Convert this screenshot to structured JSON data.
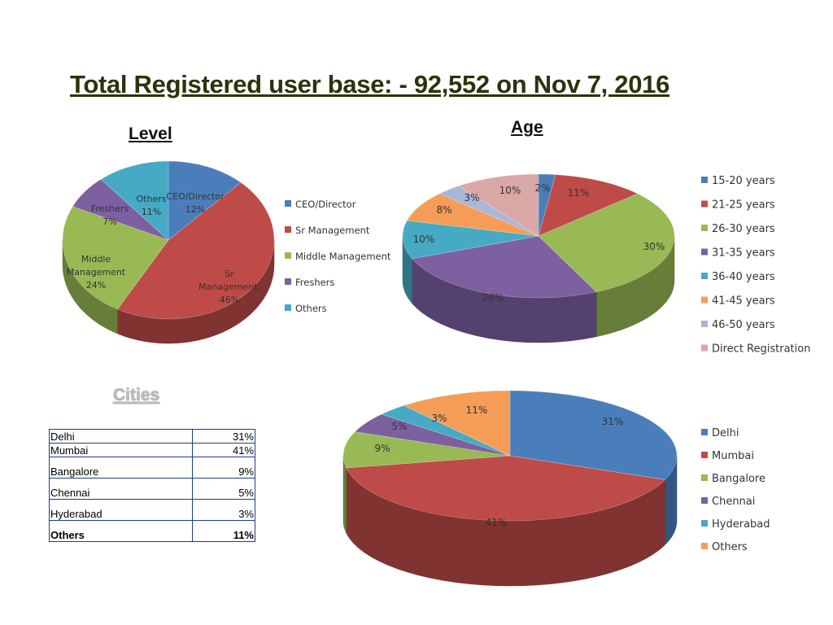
{
  "title": "Total Registered user base: - 92,552 on Nov 7, 2016",
  "headings": {
    "level": "Level",
    "age": "Age",
    "cities": "Cities"
  },
  "chart_data": [
    {
      "id": "level",
      "type": "pie",
      "title": "Level",
      "series": [
        {
          "name": "CEO/Director",
          "value": 12,
          "label": "12%",
          "color": "#4a7ebb"
        },
        {
          "name": "Sr Management",
          "value": 46,
          "label": "46%",
          "color": "#be4b48"
        },
        {
          "name": "Middle Management",
          "value": 24,
          "label": "24%",
          "color": "#98b954"
        },
        {
          "name": "Freshers",
          "value": 7,
          "label": "7%",
          "color": "#7d60a0"
        },
        {
          "name": "Others",
          "value": 11,
          "label": "11%",
          "color": "#46aac5"
        }
      ],
      "slice_labels": [
        [
          "CEO/Director",
          "12%"
        ],
        [
          "Sr",
          "Management,",
          "46%"
        ],
        [
          "Middle",
          "Management",
          "24%"
        ],
        [
          "Freshers",
          "7%"
        ],
        [
          "Others",
          "11%"
        ]
      ],
      "legend": [
        "CEO/Director",
        "Sr Management",
        "Middle Management",
        "Freshers",
        "Others"
      ],
      "legend_position": "right"
    },
    {
      "id": "age",
      "type": "pie",
      "title": "Age",
      "series": [
        {
          "name": "15-20 years",
          "value": 2,
          "label": "2%",
          "color": "#4a7ebb"
        },
        {
          "name": "21-25 years",
          "value": 11,
          "label": "11%",
          "color": "#be4b48"
        },
        {
          "name": "26-30 years",
          "value": 30,
          "label": "30%",
          "color": "#98b954"
        },
        {
          "name": "31-35 years",
          "value": 26,
          "label": "26%",
          "color": "#7d60a0"
        },
        {
          "name": "36-40 years",
          "value": 10,
          "label": "10%",
          "color": "#46aac5"
        },
        {
          "name": "41-45 years",
          "value": 8,
          "label": "8%",
          "color": "#f59d56"
        },
        {
          "name": "46-50 years",
          "value": 3,
          "label": "3%",
          "color": "#a9b6d6"
        },
        {
          "name": "Direct Registration",
          "value": 10,
          "label": "10%",
          "color": "#d9a7a6"
        }
      ],
      "legend": [
        "15-20 years",
        "21-25 years",
        "26-30 years",
        "31-35 years",
        "36-40 years",
        "41-45 years",
        "46-50 years",
        "Direct Registration"
      ],
      "legend_position": "right"
    },
    {
      "id": "cities",
      "type": "pie",
      "title": "Cities",
      "series": [
        {
          "name": "Delhi",
          "value": 31,
          "label": "31%",
          "color": "#4a7ebb"
        },
        {
          "name": "Mumbai",
          "value": 41,
          "label": "41%",
          "color": "#be4b48"
        },
        {
          "name": "Bangalore",
          "value": 9,
          "label": "9%",
          "color": "#98b954"
        },
        {
          "name": "Chennai",
          "value": 5,
          "label": "5%",
          "color": "#7d60a0"
        },
        {
          "name": "Hyderabad",
          "value": 3,
          "label": "3%",
          "color": "#46aac5"
        },
        {
          "name": "Others",
          "value": 11,
          "label": "11%",
          "color": "#f59d56"
        }
      ],
      "legend": [
        "Delhi",
        "Mumbai",
        "Bangalore",
        "Chennai",
        "Hyderabad",
        "Others"
      ],
      "legend_position": "right"
    },
    {
      "id": "cities_table",
      "type": "table",
      "rows": [
        [
          "Delhi",
          "31%"
        ],
        [
          "Mumbai",
          "41%"
        ],
        [
          "Bangalore",
          "9%"
        ],
        [
          "Chennai",
          "5%"
        ],
        [
          "Hyderabad",
          "3%"
        ],
        [
          "Others",
          "11%"
        ]
      ]
    }
  ]
}
